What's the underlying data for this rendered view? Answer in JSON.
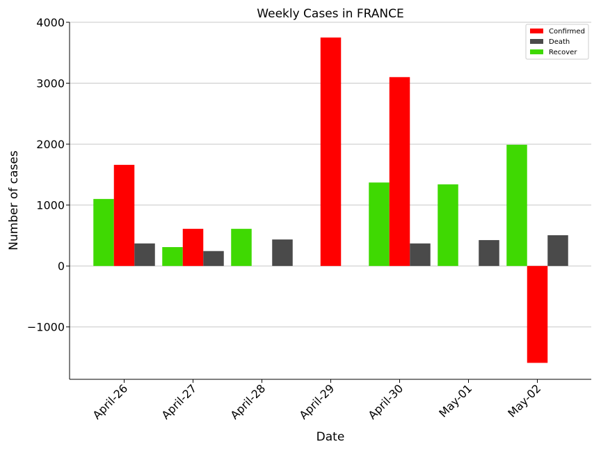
{
  "chart_data": {
    "type": "bar",
    "title": "Weekly Cases in FRANCE",
    "xlabel": "Date",
    "ylabel": "Number of cases",
    "categories": [
      "April-26",
      "April-27",
      "April-28",
      "April-29",
      "April-30",
      "May-01",
      "May-02"
    ],
    "series": [
      {
        "name": "Recover",
        "color": "#3fd902",
        "values": [
          1100,
          310,
          610,
          0,
          1370,
          1340,
          1990
        ]
      },
      {
        "name": "Confirmed",
        "color": "#ff0000",
        "values": [
          1660,
          610,
          0,
          3750,
          3100,
          0,
          -1590
        ]
      },
      {
        "name": "Death",
        "color": "#4a4a4a",
        "values": [
          370,
          245,
          435,
          0,
          370,
          425,
          505
        ]
      }
    ],
    "legend_order": [
      "Confirmed",
      "Death",
      "Recover"
    ],
    "legend_position": "top-right",
    "ylim": [
      -1860,
      4000
    ],
    "yticks": [
      -1000,
      0,
      1000,
      2000,
      3000,
      4000
    ],
    "ytick_labels": [
      "−1000",
      "0",
      "1000",
      "2000",
      "3000",
      "4000"
    ],
    "grid": "horizontal"
  }
}
